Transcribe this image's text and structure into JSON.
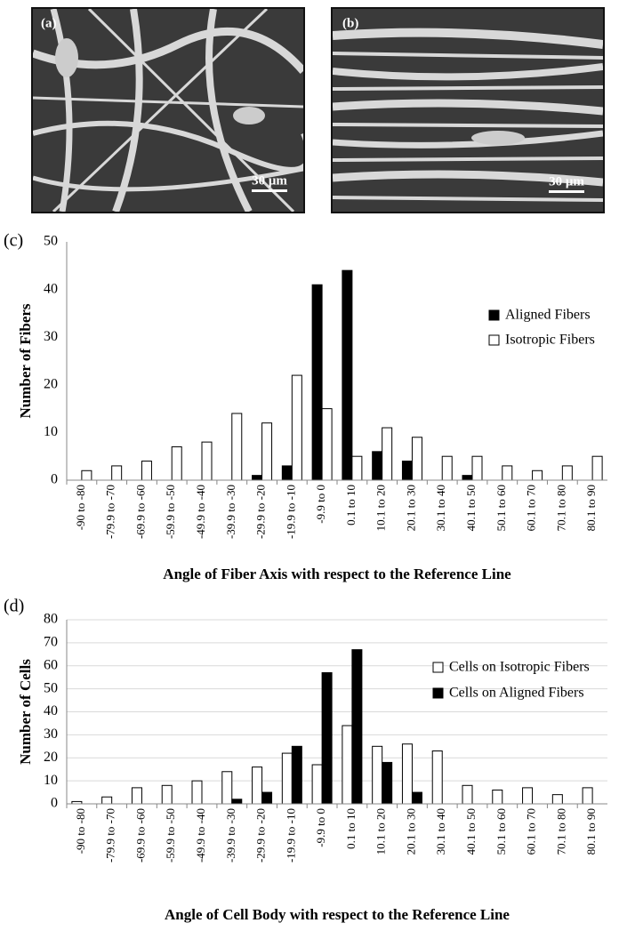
{
  "panels": [
    {
      "label": "(a)",
      "scale_bar": "30 μm"
    },
    {
      "label": "(b)",
      "scale_bar": "30 μm"
    }
  ],
  "chart_data": [
    {
      "type": "bar",
      "panel_label": "(c)",
      "y_label": "Number of Fibers",
      "x_label": "Angle of Fiber Axis with respect to the Reference Line",
      "categories": [
        "-90 to -80",
        "-79.9 to -70",
        "-69.9 to -60",
        "-59.9 to -50",
        "-49.9 to -40",
        "-39.9 to -30",
        "-29.9 to -20",
        "-19.9 to -10",
        "-9.9 to 0",
        "0.1 to 10",
        "10.1 to 20",
        "20.1 to 30",
        "30.1 to 40",
        "40.1 to 50",
        "50.1 to 60",
        "60.1 to 70",
        "70.1 to 80",
        "80.1 to 90"
      ],
      "series": [
        {
          "name": "Aligned Fibers",
          "color": "#000000",
          "values": [
            0,
            0,
            0,
            0,
            0,
            0,
            1,
            3,
            41,
            44,
            6,
            4,
            0,
            1,
            0,
            0,
            0,
            0
          ]
        },
        {
          "name": "Isotropic Fibers",
          "color": "#ffffff",
          "values": [
            2,
            3,
            4,
            7,
            8,
            14,
            12,
            22,
            15,
            5,
            11,
            9,
            5,
            5,
            3,
            2,
            3,
            5
          ]
        }
      ],
      "ylim": [
        0,
        50
      ],
      "yticks": [
        0,
        10,
        20,
        30,
        40,
        50
      ],
      "grid": false,
      "legend": "right"
    },
    {
      "type": "bar",
      "panel_label": "(d)",
      "y_label": "Number of Cells",
      "x_label": "Angle of Cell Body with respect to the Reference Line",
      "categories": [
        "-90 to -80",
        "-79.9 to -70",
        "-69.9 to -60",
        "-59.9 to -50",
        "-49.9 to -40",
        "-39.9 to -30",
        "-29.9 to -20",
        "-19.9 to -10",
        "-9.9 to 0",
        "0.1 to 10",
        "10.1 to 20",
        "20.1 to 30",
        "30.1 to 40",
        "40.1 to 50",
        "50.1 to 60",
        "60.1 to 70",
        "70.1 to 80",
        "80.1 to 90"
      ],
      "series": [
        {
          "name": "Cells on Isotropic Fibers",
          "color": "#ffffff",
          "values": [
            1,
            3,
            7,
            8,
            10,
            14,
            16,
            22,
            17,
            34,
            25,
            26,
            23,
            8,
            6,
            7,
            4,
            7
          ]
        },
        {
          "name": "Cells on Aligned Fibers",
          "color": "#000000",
          "values": [
            0,
            0,
            0,
            0,
            0,
            2,
            5,
            25,
            57,
            67,
            18,
            5,
            0,
            0,
            0,
            0,
            0,
            0
          ]
        }
      ],
      "ylim": [
        0,
        80
      ],
      "yticks": [
        0,
        10,
        20,
        30,
        40,
        50,
        60,
        70,
        80
      ],
      "grid": true,
      "legend": "right"
    }
  ]
}
